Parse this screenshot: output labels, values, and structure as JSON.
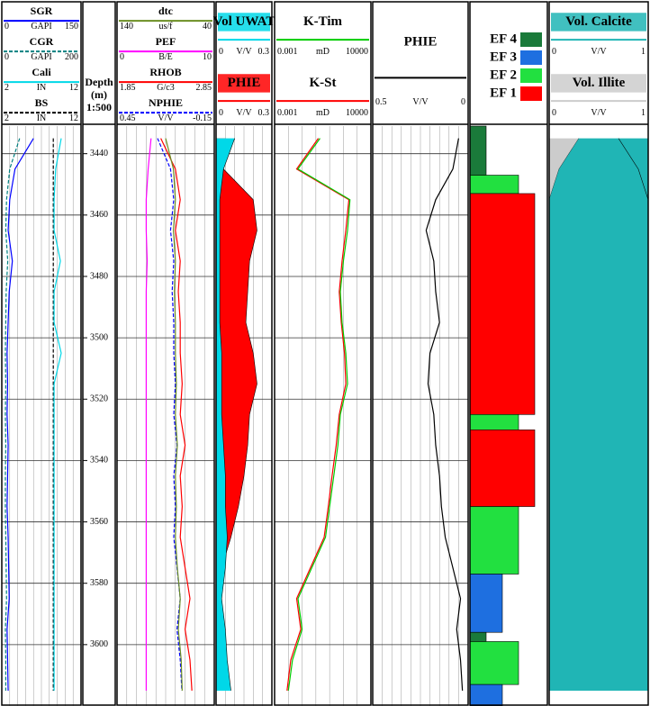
{
  "chart_data": {
    "type": "well-log",
    "ylim": [
      3431,
      3620
    ],
    "yticks": [
      3440,
      3460,
      3480,
      3500,
      3520,
      3540,
      3560,
      3580,
      3600
    ],
    "ylabel": "Depth",
    "yunit": "(m)",
    "scale": "1:500",
    "grid": true,
    "depth": [
      3435,
      3445,
      3455,
      3465,
      3475,
      3485,
      3495,
      3505,
      3515,
      3525,
      3535,
      3545,
      3555,
      3565,
      3575,
      3585,
      3595,
      3605,
      3615
    ],
    "tracks": [
      {
        "curves": [
          {
            "name": "SGR",
            "unit": "GAPI",
            "lim": [
              0,
              150
            ],
            "color": "#0000ff",
            "values": [
              60,
              25,
              15,
              12,
              20,
              14,
              12,
              10,
              11,
              10,
              12,
              11,
              10,
              12,
              13,
              14,
              10,
              11,
              12
            ]
          },
          {
            "name": "CGR",
            "unit": "GAPI",
            "lim": [
              0,
              200
            ],
            "color": "#008080",
            "dash": true,
            "values": [
              45,
              20,
              12,
              10,
              15,
              11,
              10,
              9,
              10,
              9,
              10,
              9,
              9,
              10,
              11,
              12,
              9,
              10,
              10
            ]
          },
          {
            "name": "Cali",
            "unit": "IN",
            "lim": [
              2,
              12
            ],
            "color": "#00d8e8",
            "values": [
              9.5,
              8.8,
              8.6,
              8.6,
              9.4,
              8.6,
              8.6,
              9.5,
              8.6,
              8.6,
              8.6,
              8.6,
              8.6,
              8.6,
              8.6,
              8.6,
              8.6,
              8.6,
              8.6
            ]
          },
          {
            "name": "BS",
            "unit": "IN",
            "lim": [
              2,
              12
            ],
            "color": "#000000",
            "dash": true,
            "values": [
              8.5,
              8.5,
              8.5,
              8.5,
              8.5,
              8.5,
              8.5,
              8.5,
              8.5,
              8.5,
              8.5,
              8.5,
              8.5,
              8.5,
              8.5,
              8.5,
              8.5,
              8.5,
              8.5
            ]
          }
        ]
      },
      {
        "curves": [
          {
            "name": "dtc",
            "unit": "us/f",
            "lim": [
              140,
              40
            ],
            "color": "#6b8e23",
            "values": [
              90,
              82,
              80,
              82,
              80,
              81,
              80,
              80,
              79,
              80,
              78,
              80,
              79,
              80,
              78,
              75,
              77,
              74,
              73
            ]
          },
          {
            "name": "PEF",
            "unit": "B/E",
            "lim": [
              0,
              10
            ],
            "color": "#ff00ff",
            "values": [
              3.5,
              3.2,
              3,
              3,
              3.1,
              3,
              3,
              3,
              3,
              3,
              3,
              3,
              3,
              3,
              3,
              3,
              3,
              3,
              3
            ]
          },
          {
            "name": "RHOB",
            "unit": "G/c3",
            "lim": [
              1.85,
              2.85
            ],
            "color": "#ff0000",
            "values": [
              2.3,
              2.45,
              2.5,
              2.45,
              2.5,
              2.48,
              2.5,
              2.5,
              2.52,
              2.5,
              2.55,
              2.5,
              2.52,
              2.5,
              2.55,
              2.6,
              2.55,
              2.6,
              2.62
            ]
          },
          {
            "name": "NPHIE",
            "unit": "V/V",
            "lim": [
              0.45,
              -0.15
            ],
            "color": "#0000ff",
            "dash": true,
            "values": [
              0.2,
              0.12,
              0.1,
              0.12,
              0.1,
              0.11,
              0.1,
              0.1,
              0.09,
              0.1,
              0.08,
              0.1,
              0.09,
              0.1,
              0.08,
              0.06,
              0.08,
              0.06,
              0.05
            ]
          }
        ]
      },
      {
        "curves": [
          {
            "name": "Vol UWAT",
            "unit": "V/V",
            "lim": [
              0,
              0.3
            ],
            "color": "#00d8e8",
            "fill": "left",
            "values": [
              0.1,
              0.04,
              0.02,
              0.02,
              0.02,
              0.02,
              0.02,
              0.03,
              0.03,
              0.03,
              0.04,
              0.05,
              0.05,
              0.06,
              0.05,
              0.03,
              0.05,
              0.06,
              0.08
            ]
          },
          {
            "name": "PHIE",
            "unit": "V/V",
            "lim": [
              0,
              0.3
            ],
            "color": "#ff0000",
            "fill": "left",
            "values": [
              0.05,
              0.04,
              0.2,
              0.22,
              0.18,
              0.17,
              0.16,
              0.2,
              0.22,
              0.18,
              0.17,
              0.15,
              0.12,
              0.08,
              0.03,
              0.02,
              0.05,
              0.03,
              0.02
            ]
          }
        ]
      },
      {
        "log": true,
        "curves": [
          {
            "name": "K-Tim",
            "unit": "mD",
            "lim": [
              0.001,
              10000
            ],
            "color": "#00cc00",
            "values": [
              2,
              0.05,
              300,
              200,
              100,
              60,
              80,
              150,
              200,
              60,
              40,
              20,
              10,
              5,
              0.5,
              0.05,
              0.1,
              0.02,
              0.01
            ]
          },
          {
            "name": "K-St",
            "unit": "mD",
            "lim": [
              0.001,
              10000
            ],
            "color": "#ff0000",
            "values": [
              1.5,
              0.04,
              250,
              150,
              80,
              50,
              70,
              120,
              150,
              50,
              30,
              15,
              8,
              4,
              0.4,
              0.04,
              0.08,
              0.015,
              0.008
            ]
          }
        ]
      },
      {
        "curves": [
          {
            "name": "PHIE",
            "unit": "V/V",
            "lim": [
              0.5,
              0
            ],
            "color": "#000000",
            "values": [
              0.05,
              0.08,
              0.17,
              0.22,
              0.18,
              0.17,
              0.15,
              0.2,
              0.21,
              0.18,
              0.17,
              0.15,
              0.14,
              0.12,
              0.08,
              0.04,
              0.06,
              0.04,
              0.03
            ]
          }
        ]
      },
      {
        "curves": [
          {
            "name": "Vol. Calcite",
            "unit": "V/V",
            "lim": [
              0,
              1
            ],
            "color": "#20b5b5",
            "fill": "stack",
            "values": [
              0.7,
              0.9,
              1,
              1,
              1,
              1,
              1,
              1,
              1,
              1,
              1,
              1,
              1,
              1,
              1,
              1,
              1,
              1,
              1
            ]
          },
          {
            "name": "Vol. Illite",
            "unit": "V/V",
            "lim": [
              0,
              1
            ],
            "color": "#cccccc",
            "fill": "left",
            "values": [
              0.3,
              0.1,
              0,
              0,
              0,
              0,
              0,
              0,
              0,
              0,
              0,
              0,
              0,
              0,
              0,
              0,
              0,
              0,
              0
            ]
          }
        ]
      }
    ],
    "facies_legend": [
      {
        "name": "EF 4",
        "class": 4,
        "color": "#1a7a3a"
      },
      {
        "name": "EF 3",
        "class": 3,
        "color": "#1e6fe0"
      },
      {
        "name": "EF 2",
        "class": 2,
        "color": "#22e040"
      },
      {
        "name": "EF 1",
        "class": 1,
        "color": "#ff0000"
      }
    ],
    "facies": {
      "top": [
        3431,
        3447,
        3453,
        3525,
        3530,
        3555,
        3577,
        3596,
        3599,
        3613
      ],
      "base": [
        3447,
        3453,
        3525,
        3530,
        3555,
        3577,
        3596,
        3599,
        3613,
        3620
      ],
      "class": [
        4,
        2,
        1,
        2,
        1,
        2,
        3,
        4,
        2,
        3
      ]
    }
  }
}
